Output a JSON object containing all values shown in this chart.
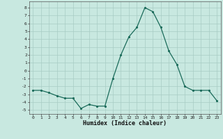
{
  "x": [
    0,
    1,
    2,
    3,
    4,
    5,
    6,
    7,
    8,
    9,
    10,
    11,
    12,
    13,
    14,
    15,
    16,
    17,
    18,
    19,
    20,
    21,
    22,
    23
  ],
  "y": [
    -2.5,
    -2.5,
    -2.8,
    -3.2,
    -3.5,
    -3.5,
    -4.8,
    -4.3,
    -4.5,
    -4.5,
    -1.0,
    2.0,
    4.3,
    5.5,
    8.0,
    7.5,
    5.5,
    2.5,
    0.8,
    -2.0,
    -2.5,
    -2.5,
    -2.5,
    -3.8
  ],
  "xlabel": "Humidex (Indice chaleur)",
  "xticks": [
    0,
    1,
    2,
    3,
    4,
    5,
    6,
    7,
    8,
    9,
    10,
    11,
    12,
    13,
    14,
    15,
    16,
    17,
    18,
    19,
    20,
    21,
    22,
    23
  ],
  "yticks": [
    -5,
    -4,
    -3,
    -2,
    -1,
    0,
    1,
    2,
    3,
    4,
    5,
    6,
    7,
    8
  ],
  "line_color": "#1a6b5a",
  "bg_color": "#c8e8e0",
  "grid_color": "#a8ccc4",
  "xlim": [
    -0.5,
    23.5
  ],
  "ylim": [
    -5.5,
    8.8
  ]
}
